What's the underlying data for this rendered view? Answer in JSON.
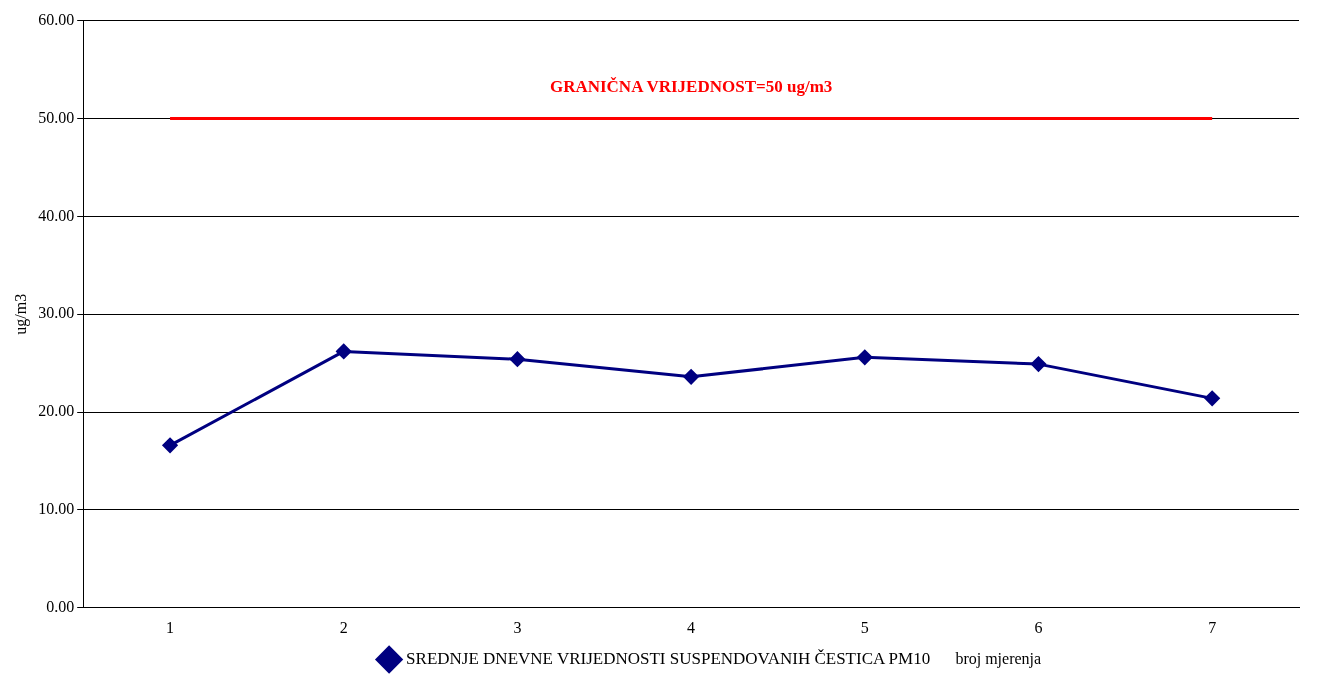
{
  "chart_data": {
    "type": "line",
    "categories": [
      "1",
      "2",
      "3",
      "4",
      "5",
      "6",
      "7"
    ],
    "series": [
      {
        "name": "SREDNJE DNEVNE VRIJEDNOSTI SUSPENDOVANIH ČESTICA PM10",
        "color": "#000080",
        "values": [
          16.6,
          26.2,
          25.4,
          23.6,
          25.6,
          24.9,
          21.4
        ]
      }
    ],
    "ylabel": "ug/m3",
    "xlabel": "broj mjerenja",
    "ylim": [
      0,
      60
    ],
    "yticks": [
      {
        "value": 0,
        "label": "0.00"
      },
      {
        "value": 10,
        "label": "10.00"
      },
      {
        "value": 20,
        "label": "20.00"
      },
      {
        "value": 30,
        "label": "30.00"
      },
      {
        "value": 40,
        "label": "40.00"
      },
      {
        "value": 50,
        "label": "50.00"
      },
      {
        "value": 60,
        "label": "60.00"
      }
    ],
    "ref_lines": [
      {
        "axis": "y",
        "value": 50,
        "label": "GRANIČNA VRIJEDNOST=50 ug/m3",
        "color": "#ff0000"
      }
    ],
    "grid": "y",
    "legend": "bottom",
    "marker": "diamond",
    "line_style": "solid"
  }
}
